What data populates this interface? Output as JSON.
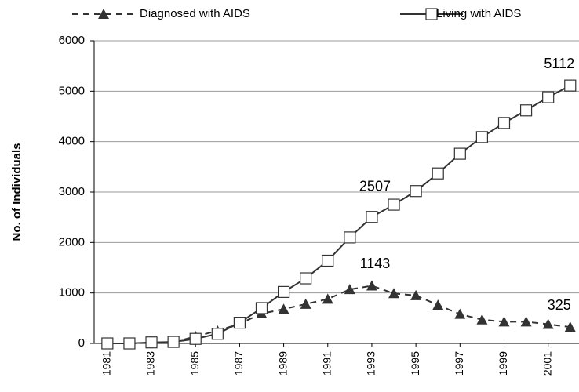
{
  "chart_data": {
    "type": "line",
    "ylabel": "No. of Individuals",
    "x": [
      1981,
      1982,
      1983,
      1984,
      1985,
      1986,
      1987,
      1988,
      1989,
      1990,
      1991,
      1992,
      1993,
      1994,
      1995,
      1996,
      1997,
      1998,
      1999,
      2000,
      2001,
      2002
    ],
    "xlim": [
      1980.4,
      2002.4
    ],
    "xticks": [
      1981,
      1983,
      1985,
      1987,
      1989,
      1991,
      1993,
      1995,
      1997,
      1999,
      2001
    ],
    "ylim": [
      0,
      6000
    ],
    "yticks": [
      0,
      1000,
      2000,
      3000,
      4000,
      5000,
      6000
    ],
    "grid": true,
    "legend": "top",
    "series": [
      {
        "name": "Diagnosed with AIDS",
        "color": "#333333",
        "style": "dashed",
        "marker": "triangle",
        "values": [
          0,
          0,
          10,
          20,
          140,
          250,
          390,
          590,
          680,
          780,
          880,
          1070,
          1143,
          990,
          950,
          760,
          580,
          470,
          430,
          430,
          380,
          325
        ],
        "value_labels": [
          null,
          null,
          null,
          null,
          null,
          null,
          null,
          null,
          null,
          null,
          null,
          null,
          "1143",
          null,
          null,
          null,
          null,
          null,
          null,
          null,
          null,
          "325"
        ]
      },
      {
        "name": "Living with AIDS",
        "color": "#333333",
        "style": "solid",
        "marker": "square",
        "values": [
          0,
          0,
          20,
          30,
          90,
          190,
          410,
          700,
          1020,
          1290,
          1640,
          2100,
          2507,
          2750,
          3020,
          3370,
          3760,
          4090,
          4370,
          4620,
          4880,
          5112
        ],
        "value_labels": [
          null,
          null,
          null,
          null,
          null,
          null,
          null,
          null,
          null,
          null,
          null,
          null,
          "2507",
          null,
          null,
          null,
          null,
          null,
          null,
          null,
          null,
          "5112"
        ]
      }
    ]
  }
}
